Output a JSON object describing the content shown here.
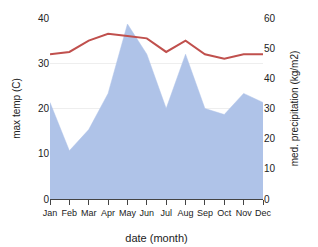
{
  "chart_data": {
    "type": "line",
    "categories": [
      "Jan",
      "Feb",
      "Mar",
      "Apr",
      "May",
      "Jun",
      "Jul",
      "Aug",
      "Sep",
      "Oct",
      "Nov",
      "Dec"
    ],
    "series": [
      {
        "type": "area",
        "axis": "y2",
        "color": "#afc3e8",
        "values": [
          32,
          16,
          23,
          35,
          58,
          48,
          30,
          48,
          30,
          28,
          35,
          32
        ]
      },
      {
        "type": "line",
        "color": "#c0504d",
        "values": [
          32.0,
          32.5,
          35.0,
          36.5,
          36.0,
          35.5,
          32.5,
          35.0,
          32.0,
          31.0,
          32.0,
          32.0
        ]
      }
    ],
    "xlabel": "date (month)",
    "ylabel": "max temp (C)",
    "y2label": "med. precipitation (kg/m2)",
    "ylim": [
      0,
      40
    ],
    "yticks": [
      0,
      10,
      20,
      30,
      40
    ],
    "y2lim": [
      0,
      60
    ],
    "y2ticks": [
      0,
      10,
      20,
      30,
      40,
      50,
      60
    ],
    "grid": true
  }
}
